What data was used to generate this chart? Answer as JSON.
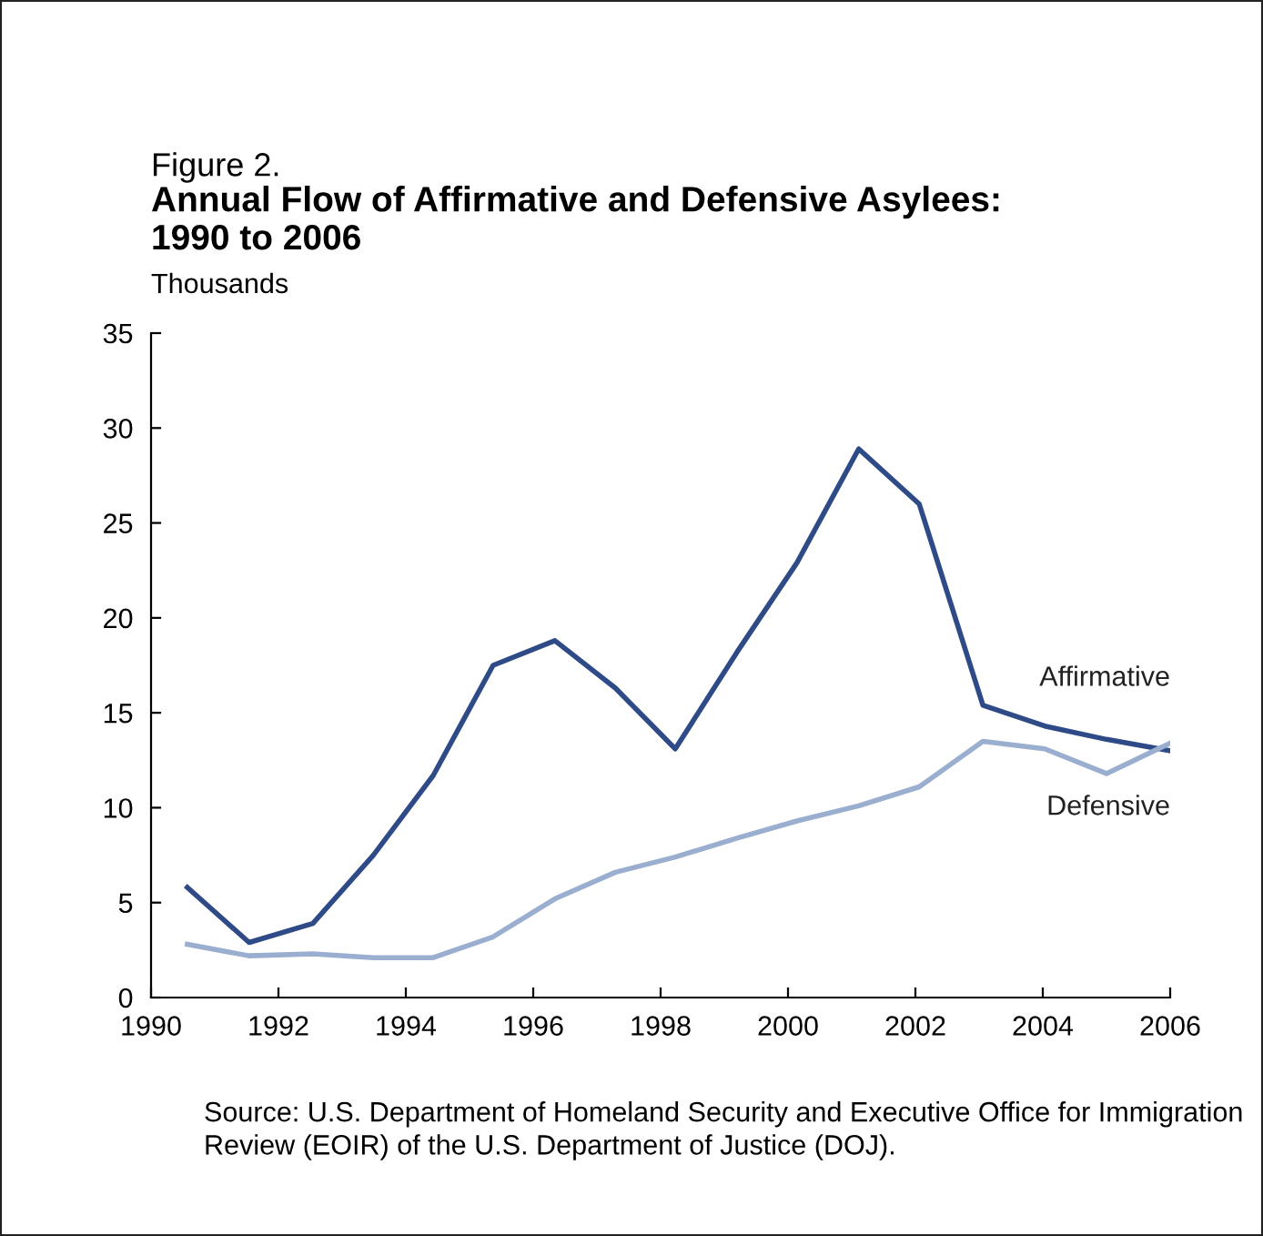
{
  "chart_data": {
    "type": "line",
    "subtitle": "Figure 2.",
    "title": "Annual Flow of Affirmative and Defensive Asylees:\n1990 to 2006",
    "ylabel": "Thousands",
    "xlim": [
      1990,
      2006
    ],
    "xticks": [
      1990,
      1992,
      1994,
      1996,
      1998,
      2000,
      2002,
      2004,
      2006
    ],
    "ylim": [
      0,
      35
    ],
    "yticks": [
      0,
      5,
      10,
      15,
      20,
      25,
      30,
      35
    ],
    "grid": false,
    "legend": false,
    "marker": "none",
    "line_style": "solid",
    "series": [
      {
        "name": "Affirmative",
        "color": "#2e4a87",
        "x": [
          1990.57,
          1991.54,
          1992.54,
          1993.49,
          1994.43,
          1995.37,
          1996.34,
          1997.29,
          1998.23,
          1999.2,
          2000.14,
          2001.11,
          2002.06,
          2003.06,
          2004.03,
          2005.0,
          2006.0
        ],
        "values": [
          5.8,
          2.9,
          3.9,
          7.5,
          11.7,
          17.5,
          18.8,
          16.3,
          13.1,
          18.2,
          22.9,
          28.9,
          26.0,
          15.4,
          14.3,
          13.6,
          13.0
        ]
      },
      {
        "name": "Defensive",
        "color": "#9aaecf",
        "x": [
          1990.57,
          1991.54,
          1992.54,
          1993.49,
          1994.43,
          1995.37,
          1996.34,
          1997.29,
          1998.23,
          1999.2,
          2000.14,
          2001.11,
          2002.06,
          2003.06,
          2004.03,
          2005.0,
          2006.0
        ],
        "values": [
          2.8,
          2.2,
          2.3,
          2.1,
          2.1,
          3.2,
          5.2,
          6.6,
          7.4,
          8.4,
          9.3,
          10.1,
          11.1,
          13.5,
          13.1,
          11.8,
          13.4
        ]
      }
    ],
    "annotations": [
      "Source: U.S. Department of Homeland Security and Executive Office for Immigration Review (EOIR) of the U.S. Department of Justice (DOJ)."
    ]
  }
}
